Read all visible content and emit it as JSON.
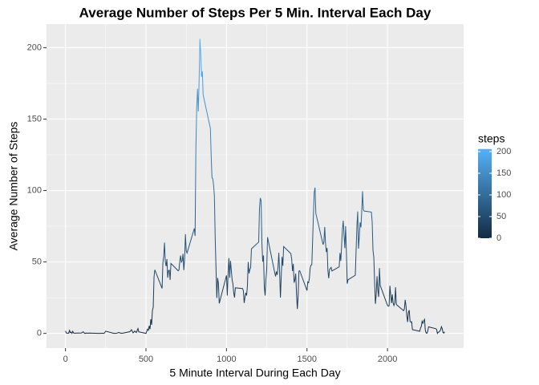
{
  "chart_data": {
    "type": "line",
    "title": "Average Number of Steps Per 5 Min. Interval Each Day",
    "x_label": "5 Minute Interval During Each Day",
    "y_label": "Average Number of Steps",
    "legend_title": "steps",
    "color_low": "#132B43",
    "color_high": "#56B1F7",
    "colorlim": [
      0,
      206
    ],
    "legend_ticks": [
      0,
      50,
      100,
      150,
      200
    ],
    "xlim": [
      -117.75,
      2472.75
    ],
    "xticks": [
      0,
      500,
      1000,
      1500,
      2000
    ],
    "ylim": [
      -10.3,
      216.5
    ],
    "yticks": [
      0,
      50,
      100,
      150,
      200
    ],
    "grid": true,
    "x": [
      0,
      5,
      10,
      15,
      20,
      25,
      30,
      35,
      40,
      45,
      50,
      55,
      100,
      110,
      120,
      130,
      140,
      150,
      200,
      210,
      220,
      230,
      240,
      250,
      300,
      310,
      320,
      330,
      340,
      350,
      400,
      410,
      420,
      430,
      440,
      450,
      455,
      500,
      505,
      510,
      515,
      520,
      525,
      530,
      535,
      540,
      545,
      550,
      555,
      600,
      605,
      610,
      615,
      620,
      625,
      630,
      635,
      640,
      645,
      650,
      655,
      700,
      705,
      710,
      715,
      720,
      725,
      730,
      735,
      740,
      745,
      750,
      755,
      800,
      805,
      810,
      815,
      820,
      825,
      830,
      835,
      840,
      845,
      850,
      855,
      900,
      905,
      910,
      915,
      920,
      925,
      930,
      935,
      940,
      945,
      950,
      955,
      1000,
      1005,
      1010,
      1015,
      1020,
      1025,
      1030,
      1035,
      1040,
      1045,
      1050,
      1055,
      1100,
      1105,
      1110,
      1115,
      1120,
      1125,
      1130,
      1135,
      1140,
      1145,
      1150,
      1155,
      1200,
      1205,
      1210,
      1215,
      1220,
      1225,
      1230,
      1235,
      1240,
      1245,
      1250,
      1255,
      1300,
      1305,
      1310,
      1315,
      1320,
      1325,
      1330,
      1335,
      1340,
      1345,
      1350,
      1355,
      1400,
      1405,
      1410,
      1415,
      1420,
      1425,
      1430,
      1435,
      1440,
      1445,
      1450,
      1455,
      1500,
      1505,
      1510,
      1515,
      1520,
      1525,
      1530,
      1535,
      1540,
      1545,
      1550,
      1555,
      1600,
      1605,
      1610,
      1615,
      1620,
      1625,
      1630,
      1635,
      1640,
      1645,
      1650,
      1655,
      1700,
      1705,
      1710,
      1715,
      1720,
      1725,
      1730,
      1735,
      1740,
      1745,
      1750,
      1755,
      1800,
      1805,
      1810,
      1815,
      1820,
      1825,
      1830,
      1835,
      1840,
      1845,
      1850,
      1855,
      1900,
      1905,
      1910,
      1915,
      1920,
      1925,
      1930,
      1935,
      1940,
      1945,
      1950,
      1955,
      2000,
      2005,
      2010,
      2015,
      2020,
      2025,
      2030,
      2035,
      2040,
      2045,
      2050,
      2055,
      2100,
      2105,
      2110,
      2115,
      2120,
      2125,
      2130,
      2135,
      2140,
      2145,
      2150,
      2155,
      2200,
      2205,
      2210,
      2215,
      2220,
      2225,
      2230,
      2235,
      2240,
      2245,
      2250,
      2255,
      2300,
      2305,
      2310,
      2315,
      2320,
      2325,
      2330,
      2335,
      2340,
      2345,
      2350,
      2355
    ],
    "values": [
      1.72,
      0.34,
      0.13,
      0.15,
      0.08,
      2.09,
      0.53,
      0.87,
      0,
      1.47,
      0.3,
      0.13,
      0.32,
      1.13,
      0,
      0.23,
      0.17,
      0.21,
      0,
      0.04,
      0,
      0.09,
      0,
      1.55,
      0,
      0,
      0.19,
      0.66,
      0.28,
      0,
      1.19,
      2.57,
      0.34,
      1.62,
      0.55,
      3.4,
      1.11,
      0,
      1.5,
      3,
      2.2,
      5.3,
      2.96,
      9.97,
      6,
      16,
      18.3,
      39.5,
      44.5,
      31.5,
      49.3,
      53.8,
      63.5,
      50,
      47,
      52,
      39,
      44,
      44.2,
      37.4,
      49,
      43.8,
      44.4,
      50.5,
      54.5,
      49.9,
      50.9,
      55.7,
      44.3,
      52.3,
      69.5,
      57.8,
      56.2,
      73.4,
      68.2,
      129.4,
      157.5,
      171.2,
      155.4,
      177.3,
      206.2,
      195.9,
      179.6,
      183.4,
      167,
      143.5,
      124,
      109.1,
      108.1,
      103.7,
      95.97,
      66.2,
      45.2,
      24.8,
      38.8,
      35,
      21,
      40.6,
      26.5,
      42.4,
      52.7,
      38.9,
      50.8,
      44.3,
      37.4,
      34.7,
      28.3,
      25.1,
      31.9,
      31.4,
      29.7,
      21.3,
      25.5,
      28.4,
      26.5,
      33.4,
      49.98,
      42,
      44.6,
      46,
      59.2,
      63.9,
      87.7,
      94.8,
      92.8,
      63.4,
      50.2,
      54.5,
      32.4,
      26.5,
      37.7,
      45,
      67.3,
      42.3,
      39.9,
      43.3,
      40.98,
      46.2,
      56.4,
      42.8,
      25.1,
      39.97,
      53.6,
      47.3,
      60.8,
      55.8,
      51.96,
      43.6,
      48.7,
      35.5,
      37.5,
      41.8,
      27.5,
      17.1,
      26.1,
      43.6,
      43.8,
      30,
      36.1,
      35.5,
      38.8,
      45.96,
      47.8,
      48.1,
      65.3,
      82.9,
      98.7,
      102.1,
      83.96,
      62.1,
      64.1,
      74.5,
      63.2,
      56.9,
      59.8,
      43.9,
      38.6,
      44.7,
      45.5,
      46.2,
      43.7,
      46.6,
      56.3,
      50.7,
      61.2,
      72.7,
      78.9,
      68.9,
      59.7,
      75.1,
      56.5,
      34.8,
      37.5,
      40.7,
      58,
      74.7,
      85.3,
      59.3,
      67.8,
      77.7,
      74.2,
      85.3,
      99.5,
      86.6,
      85.6,
      84.9,
      77.8,
      58,
      53.4,
      36.3,
      20.7,
      27.4,
      40,
      30.2,
      25.5,
      45.7,
      33.5,
      19.6,
      19,
      19.3,
      33.3,
      26.8,
      21.2,
      27.3,
      21.3,
      19.5,
      21.3,
      32.3,
      20.2,
      15.9,
      17.2,
      23.5,
      19.2,
      12.5,
      8,
      14.7,
      16.3,
      8.7,
      7.8,
      8.1,
      2.6,
      1.5,
      3.7,
      4.8,
      8.5,
      7.1,
      8.7,
      9.8,
      2.2,
      0.3,
      0.1,
      1.6,
      4.6,
      3.3,
      2.8,
      0,
      0.8,
      0.96,
      1.6,
      2.6,
      4.7,
      3.3,
      0.6,
      0.2,
      1.1
    ]
  }
}
